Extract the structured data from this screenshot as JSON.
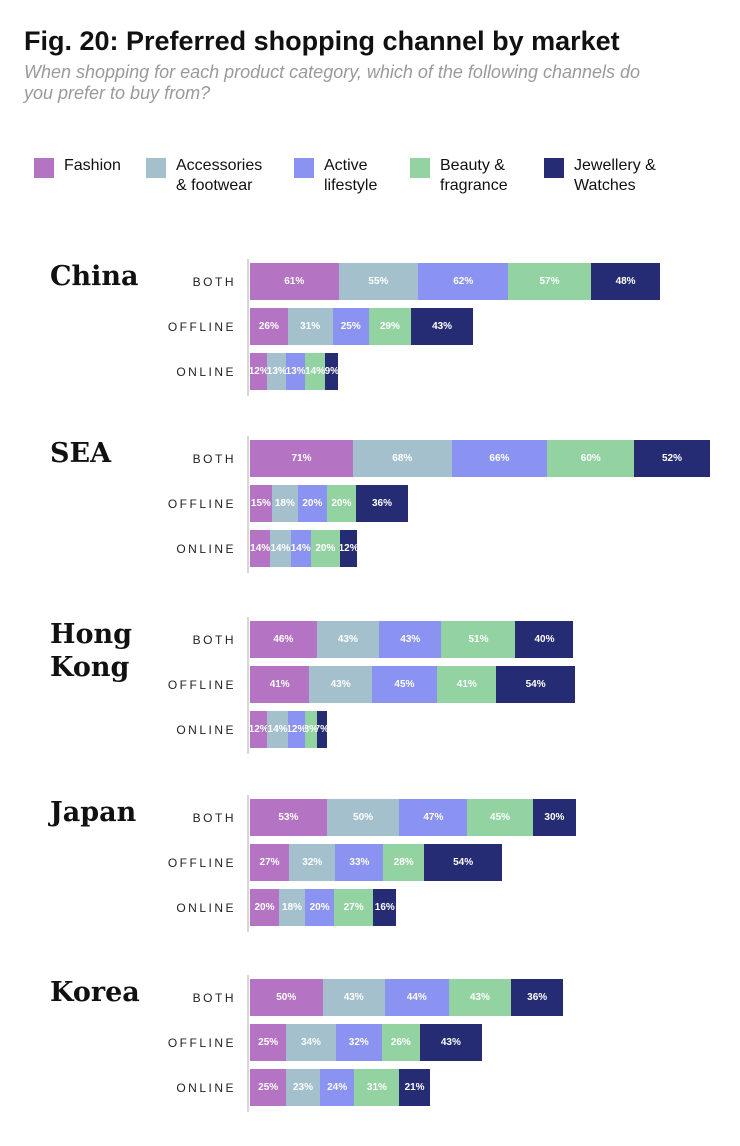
{
  "chart_data": {
    "type": "bar",
    "orientation": "horizontal",
    "stacked": true,
    "title": "Fig. 20: Preferred shopping channel by market",
    "subtitle": "When shopping for each product category, which of the following channels do you prefer to buy from?",
    "legend_position": "top",
    "series": [
      {
        "name": "Fashion",
        "label_lines": [
          "Fashion"
        ],
        "color": "#b574c3"
      },
      {
        "name": "Accessories & footwear",
        "label_lines": [
          "Accessories",
          "& footwear"
        ],
        "color": "#a3c0cc"
      },
      {
        "name": "Active lifestyle",
        "label_lines": [
          "Active",
          "lifestyle"
        ],
        "color": "#8a93f1"
      },
      {
        "name": "Beauty & fragrance",
        "label_lines": [
          "Beauty &",
          "fragrance"
        ],
        "color": "#93d3a1"
      },
      {
        "name": "Jewellery & Watches",
        "label_lines": [
          "Jewellery &",
          "Watches"
        ],
        "color": "#252c73"
      }
    ],
    "markets": [
      {
        "name": "China",
        "name_lines": [
          "China"
        ],
        "rows": [
          {
            "channel": "BOTH",
            "values": [
              61,
              55,
              62,
              57,
              48
            ]
          },
          {
            "channel": "OFFLINE",
            "values": [
              26,
              31,
              25,
              29,
              43
            ]
          },
          {
            "channel": "ONLINE",
            "values": [
              12,
              13,
              13,
              14,
              9
            ]
          }
        ]
      },
      {
        "name": "SEA",
        "name_lines": [
          "SEA"
        ],
        "rows": [
          {
            "channel": "BOTH",
            "values": [
              71,
              68,
              66,
              60,
              52
            ]
          },
          {
            "channel": "OFFLINE",
            "values": [
              15,
              18,
              20,
              20,
              36
            ]
          },
          {
            "channel": "ONLINE",
            "values": [
              14,
              14,
              14,
              20,
              12
            ]
          }
        ]
      },
      {
        "name": "Hong Kong",
        "name_lines": [
          "Hong",
          "Kong"
        ],
        "rows": [
          {
            "channel": "BOTH",
            "values": [
              46,
              43,
              43,
              51,
              40
            ]
          },
          {
            "channel": "OFFLINE",
            "values": [
              41,
              43,
              45,
              41,
              54
            ]
          },
          {
            "channel": "ONLINE",
            "values": [
              12,
              14,
              12,
              8,
              7
            ]
          }
        ]
      },
      {
        "name": "Japan",
        "name_lines": [
          "Japan"
        ],
        "rows": [
          {
            "channel": "BOTH",
            "values": [
              53,
              50,
              47,
              45,
              30
            ]
          },
          {
            "channel": "OFFLINE",
            "values": [
              27,
              32,
              33,
              28,
              54
            ]
          },
          {
            "channel": "ONLINE",
            "values": [
              20,
              18,
              20,
              27,
              16
            ]
          }
        ]
      },
      {
        "name": "Korea",
        "name_lines": [
          "Korea"
        ],
        "rows": [
          {
            "channel": "BOTH",
            "values": [
              50,
              43,
              44,
              43,
              36
            ]
          },
          {
            "channel": "OFFLINE",
            "values": [
              25,
              34,
              32,
              26,
              43
            ]
          },
          {
            "channel": "ONLINE",
            "values": [
              25,
              23,
              24,
              31,
              21
            ]
          }
        ]
      }
    ],
    "value_suffix": "%"
  }
}
